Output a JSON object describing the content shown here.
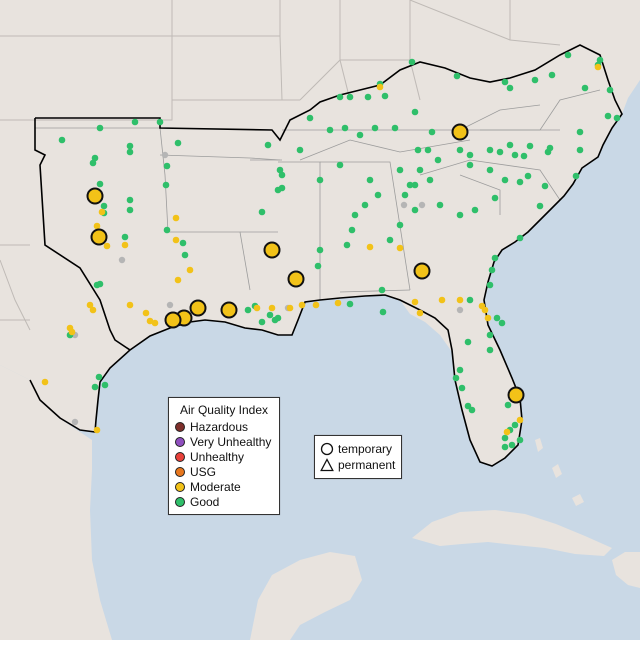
{
  "map": {
    "colors": {
      "ocean": "#c9d8e6",
      "land": "#e8e3de",
      "state_border": "#bfbab6",
      "region_border": "#000000"
    }
  },
  "legend_aqi": {
    "title": "Air Quality Index",
    "items": [
      {
        "label": "Hazardous",
        "color": "#7e2f2b"
      },
      {
        "label": "Very Unhealthy",
        "color": "#8f4fbf"
      },
      {
        "label": "Unhealthy",
        "color": "#e8403a"
      },
      {
        "label": "USG",
        "color": "#e8771e"
      },
      {
        "label": "Moderate",
        "color": "#f2c218"
      },
      {
        "label": "Good",
        "color": "#2fbf6a"
      }
    ]
  },
  "legend_type": {
    "items": [
      {
        "label": "temporary",
        "icon": "circle-icon"
      },
      {
        "label": "permanent",
        "icon": "triangle-icon"
      }
    ]
  },
  "monitors": {
    "colors": {
      "good": "#2fbf6a",
      "moderate": "#f2c218",
      "unknown": "#b5b5b5"
    }
  }
}
